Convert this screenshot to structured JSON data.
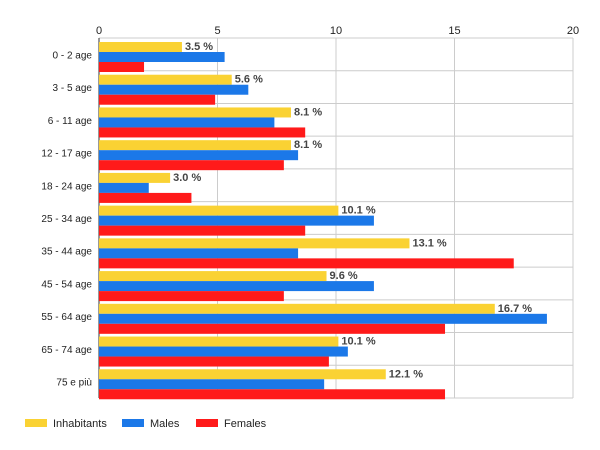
{
  "chart_data": {
    "type": "bar",
    "orientation": "horizontal",
    "categories": [
      "0 - 2 age",
      "3 - 5 age",
      "6 - 11 age",
      "12 - 17 age",
      "18 - 24 age",
      "25 - 34 age",
      "35 - 44 age",
      "45 - 54 age",
      "55 - 64 age",
      "65 - 74 age",
      "75 e più"
    ],
    "series": [
      {
        "name": "Inhabitants",
        "color": "#fad233",
        "values": [
          3.5,
          5.6,
          8.1,
          8.1,
          3.0,
          10.1,
          13.1,
          9.6,
          16.7,
          10.1,
          12.1
        ],
        "labels": [
          "3.5 %",
          "5.6 %",
          "8.1 %",
          "8.1 %",
          "3.0 %",
          "10.1 %",
          "13.1 %",
          "9.6 %",
          "16.7 %",
          "10.1 %",
          "12.1 %"
        ]
      },
      {
        "name": "Males",
        "color": "#1b78e8",
        "values": [
          5.3,
          6.3,
          7.4,
          8.4,
          2.1,
          11.6,
          8.4,
          11.6,
          18.9,
          10.5,
          9.5
        ]
      },
      {
        "name": "Females",
        "color": "#ff1a1a",
        "values": [
          1.9,
          4.9,
          8.7,
          7.8,
          3.9,
          8.7,
          17.5,
          7.8,
          14.6,
          9.7,
          14.6
        ]
      }
    ],
    "xlim": [
      0,
      20
    ],
    "xticks": [
      0,
      5,
      10,
      15,
      20
    ],
    "axis_position": "top",
    "grid": true,
    "legend": "bottom-left"
  }
}
